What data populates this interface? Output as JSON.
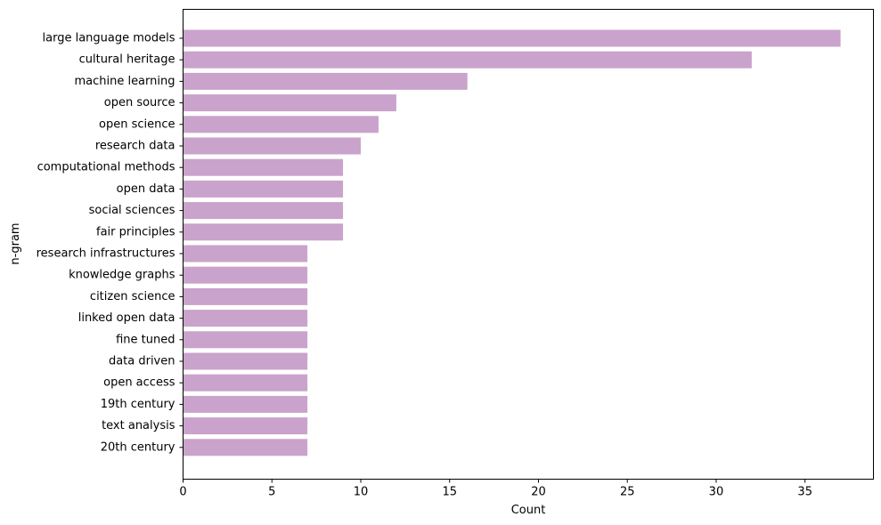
{
  "chart_data": {
    "type": "bar",
    "orientation": "horizontal",
    "xlabel": "Count",
    "ylabel": "n-gram",
    "xlim": [
      0,
      38.85
    ],
    "x_ticks": [
      0,
      5,
      10,
      15,
      20,
      25,
      30,
      35
    ],
    "grid": false,
    "bar_color": "#c9a3cb",
    "categories": [
      "large language models",
      "cultural heritage",
      "machine learning",
      "open source",
      "open science",
      "research data",
      "computational methods",
      "open data",
      "social sciences",
      "fair principles",
      "research infrastructures",
      "knowledge graphs",
      "citizen science",
      "linked open data",
      "fine tuned",
      "data driven",
      "open access",
      "19th century",
      "text analysis",
      "20th century"
    ],
    "values": [
      37,
      32,
      16,
      12,
      11,
      10,
      9,
      9,
      9,
      9,
      7,
      7,
      7,
      7,
      7,
      7,
      7,
      7,
      7,
      7
    ]
  }
}
